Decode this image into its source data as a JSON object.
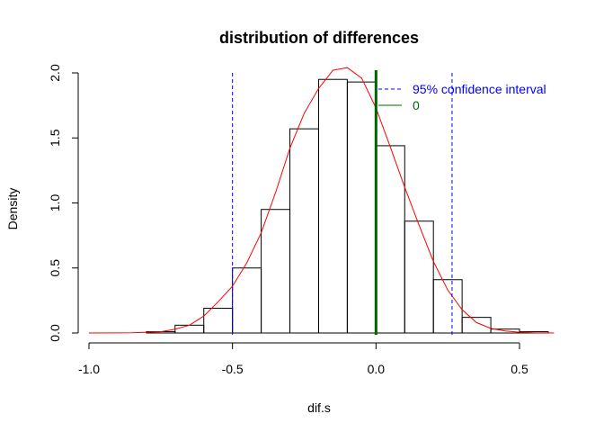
{
  "chart_data": {
    "type": "bar",
    "title": "distribution of differences",
    "xlabel": "dif.s",
    "ylabel": "Density",
    "xlim": [
      -1.0,
      0.65
    ],
    "ylim": [
      0,
      2.0
    ],
    "x_ticks": [
      "-1.0",
      "-0.5",
      "0.0",
      "0.5"
    ],
    "y_ticks": [
      "0.0",
      "0.5",
      "1.0",
      "1.5",
      "2.0"
    ],
    "bin_width": 0.1,
    "bins": [
      {
        "start": -0.8,
        "end": -0.7,
        "density": 0.01
      },
      {
        "start": -0.7,
        "end": -0.6,
        "density": 0.06
      },
      {
        "start": -0.6,
        "end": -0.5,
        "density": 0.19
      },
      {
        "start": -0.5,
        "end": -0.4,
        "density": 0.5
      },
      {
        "start": -0.4,
        "end": -0.3,
        "density": 0.95
      },
      {
        "start": -0.3,
        "end": -0.2,
        "density": 1.57
      },
      {
        "start": -0.2,
        "end": -0.1,
        "density": 1.95
      },
      {
        "start": -0.1,
        "end": 0.0,
        "density": 1.93
      },
      {
        "start": 0.0,
        "end": 0.1,
        "density": 1.44
      },
      {
        "start": 0.1,
        "end": 0.2,
        "density": 0.86
      },
      {
        "start": 0.2,
        "end": 0.3,
        "density": 0.41
      },
      {
        "start": 0.3,
        "end": 0.4,
        "density": 0.12
      },
      {
        "start": 0.4,
        "end": 0.5,
        "density": 0.03
      },
      {
        "start": 0.5,
        "end": 0.6,
        "density": 0.01
      }
    ],
    "density_curve": {
      "color": "#ff0000",
      "x": [
        -1.0,
        -0.85,
        -0.75,
        -0.7,
        -0.65,
        -0.6,
        -0.55,
        -0.5,
        -0.45,
        -0.4,
        -0.35,
        -0.3,
        -0.25,
        -0.2,
        -0.15,
        -0.1,
        -0.05,
        0.0,
        0.05,
        0.1,
        0.15,
        0.2,
        0.25,
        0.3,
        0.35,
        0.4,
        0.45,
        0.5,
        0.55,
        0.62
      ],
      "y": [
        0.0,
        0.002,
        0.01,
        0.03,
        0.06,
        0.13,
        0.24,
        0.36,
        0.54,
        0.77,
        1.08,
        1.42,
        1.69,
        1.88,
        2.02,
        2.04,
        1.96,
        1.73,
        1.43,
        1.12,
        0.83,
        0.55,
        0.33,
        0.18,
        0.08,
        0.035,
        0.015,
        0.006,
        0.002,
        0.0
      ]
    },
    "vlines": [
      {
        "x": -0.5,
        "style": "dashed",
        "color": "#0000ff",
        "role": "confidence"
      },
      {
        "x": 0.265,
        "style": "dashed",
        "color": "#0000ff",
        "role": "confidence"
      },
      {
        "x": 0.0,
        "style": "solid",
        "color": "#006400",
        "role": "zero"
      }
    ],
    "legend": {
      "position": "top-right",
      "items": [
        {
          "label": "95% confidence interval",
          "color": "#0000ff",
          "style": "dashed"
        },
        {
          "label": "0",
          "color": "#006400",
          "style": "solid"
        }
      ]
    },
    "grid": false
  }
}
